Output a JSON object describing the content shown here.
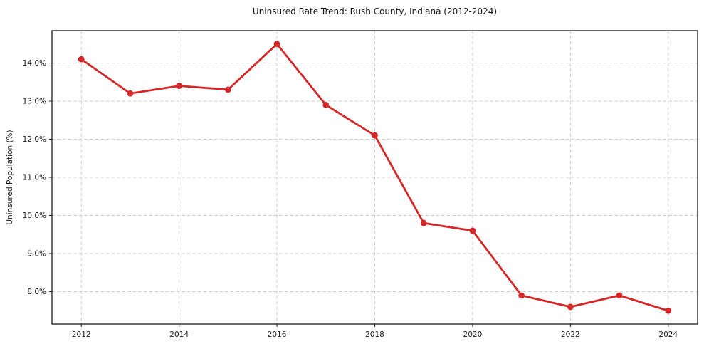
{
  "chart_data": {
    "type": "line",
    "title": "Uninsured Rate Trend: Rush County, Indiana (2012-2024)",
    "xlabel": "",
    "ylabel": "Uninsured Population (%)",
    "x": [
      2012,
      2013,
      2014,
      2015,
      2016,
      2017,
      2018,
      2019,
      2020,
      2021,
      2022,
      2023,
      2024
    ],
    "values": [
      14.1,
      13.2,
      13.4,
      13.3,
      14.5,
      12.9,
      12.1,
      9.8,
      9.6,
      7.9,
      7.6,
      7.9,
      7.5
    ],
    "x_ticks": [
      2012,
      2014,
      2016,
      2018,
      2020,
      2022,
      2024
    ],
    "x_tick_labels": [
      "2012",
      "2014",
      "2016",
      "2018",
      "2020",
      "2022",
      "2024"
    ],
    "y_ticks": [
      8,
      9,
      10,
      11,
      12,
      13,
      14
    ],
    "y_tick_labels": [
      "8.0%",
      "9.0%",
      "10.0%",
      "11.0%",
      "12.0%",
      "13.0%",
      "14.0%"
    ],
    "xlim": [
      2011.4,
      2024.6
    ],
    "ylim": [
      7.15,
      14.85
    ],
    "grid": true,
    "grid_style": "dashed",
    "legend": false,
    "colors": {
      "line": "#d62728",
      "marker": "#d62728",
      "grid": "#cccccc",
      "axis": "#1a1a1a",
      "text": "#111111",
      "background": "#ffffff"
    }
  }
}
